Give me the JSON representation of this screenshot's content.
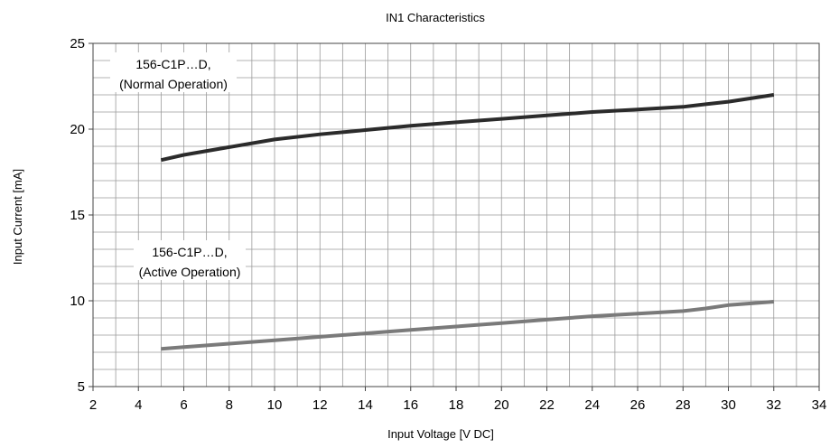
{
  "chart_data": {
    "type": "line",
    "title": "IN1 Characteristics",
    "xlabel": "Input Voltage [V DC]",
    "ylabel": "Input Current [mA]",
    "xlim": [
      2,
      34
    ],
    "ylim": [
      5,
      25
    ],
    "x_ticks": [
      2,
      4,
      6,
      8,
      10,
      12,
      14,
      16,
      18,
      20,
      22,
      24,
      26,
      28,
      30,
      32,
      34
    ],
    "y_ticks": [
      5,
      10,
      15,
      20,
      25
    ],
    "grid": true,
    "series": [
      {
        "name": "156-C1P…D, (Normal Operation)",
        "label_lines": [
          "156-C1P…D,",
          "(Normal Operation)"
        ],
        "color": "#2b2b2b",
        "x": [
          5,
          6,
          8,
          10,
          12,
          14,
          16,
          18,
          20,
          22,
          24,
          26,
          28,
          29,
          30,
          32
        ],
        "y": [
          18.2,
          18.5,
          18.95,
          19.4,
          19.7,
          19.95,
          20.2,
          20.4,
          20.6,
          20.8,
          21.0,
          21.15,
          21.3,
          21.45,
          21.6,
          22.0
        ]
      },
      {
        "name": "156-C1P…D, (Active Operation)",
        "label_lines": [
          "156-C1P…D,",
          "(Active Operation)"
        ],
        "color": "#7a7a7a",
        "x": [
          5,
          6,
          8,
          10,
          12,
          14,
          16,
          18,
          20,
          22,
          24,
          26,
          28,
          29,
          30,
          32
        ],
        "y": [
          7.2,
          7.3,
          7.5,
          7.7,
          7.9,
          8.1,
          8.3,
          8.5,
          8.7,
          8.9,
          9.1,
          9.25,
          9.4,
          9.55,
          9.75,
          9.95
        ]
      }
    ]
  }
}
